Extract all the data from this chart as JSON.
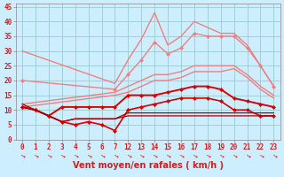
{
  "background_color": "#cceeff",
  "grid_color": "#99cccc",
  "xlabel": "Vent moyen/en rafales ( km/h )",
  "ylim": [
    0,
    46
  ],
  "yticks": [
    0,
    5,
    10,
    15,
    20,
    25,
    30,
    35,
    40,
    45
  ],
  "x_positions": [
    0,
    1,
    2,
    3,
    4,
    5,
    6,
    7,
    8,
    9,
    10,
    11,
    12,
    13,
    14,
    15,
    16,
    17,
    18,
    19
  ],
  "x_labels": [
    "0",
    "1",
    "2",
    "3",
    "4",
    "5",
    "6",
    "7",
    "12",
    "13",
    "14",
    "15",
    "16",
    "17",
    "18",
    "19",
    "20",
    "21",
    "22",
    "23"
  ],
  "series": [
    {
      "name": "upper_light1",
      "color": "#f08080",
      "linewidth": 1.0,
      "marker": null,
      "data_xi": [
        0,
        7,
        8,
        9,
        10,
        11,
        12,
        13,
        14,
        15,
        16,
        17,
        18,
        19
      ],
      "data_y": [
        30,
        19,
        27,
        34,
        43,
        32,
        35,
        40,
        38,
        36,
        36,
        32,
        25,
        18
      ]
    },
    {
      "name": "upper_light2",
      "color": "#f08080",
      "linewidth": 1.0,
      "marker": "D",
      "markersize": 2.0,
      "data_xi": [
        0,
        7,
        8,
        9,
        10,
        11,
        12,
        13,
        14,
        15,
        16,
        17,
        18,
        19
      ],
      "data_y": [
        20,
        17,
        22,
        27,
        33,
        29,
        31,
        36,
        35,
        35,
        35,
        31,
        25,
        18
      ]
    },
    {
      "name": "mid_light1",
      "color": "#f08080",
      "linewidth": 1.0,
      "marker": null,
      "data_xi": [
        0,
        7,
        8,
        9,
        10,
        11,
        12,
        13,
        14,
        15,
        16,
        17,
        18,
        19
      ],
      "data_y": [
        12,
        16,
        18,
        20,
        22,
        22,
        23,
        25,
        25,
        25,
        25,
        22,
        18,
        15
      ]
    },
    {
      "name": "mid_light2",
      "color": "#f08080",
      "linewidth": 1.0,
      "marker": null,
      "data_xi": [
        0,
        7,
        8,
        9,
        10,
        11,
        12,
        13,
        14,
        15,
        16,
        17,
        18,
        19
      ],
      "data_y": [
        11,
        15,
        16,
        18,
        20,
        20,
        21,
        23,
        23,
        23,
        24,
        21,
        17,
        14
      ]
    },
    {
      "name": "red_main",
      "color": "#dd0000",
      "linewidth": 1.4,
      "marker": "D",
      "markersize": 2.0,
      "data_xi": [
        0,
        1,
        2,
        3,
        4,
        5,
        6,
        7,
        8,
        9,
        10,
        11,
        12,
        13,
        14,
        15,
        16,
        17,
        18,
        19
      ],
      "data_y": [
        11,
        10,
        8,
        11,
        11,
        11,
        11,
        11,
        15,
        15,
        15,
        16,
        17,
        18,
        18,
        17,
        14,
        13,
        12,
        11
      ]
    },
    {
      "name": "red_lower",
      "color": "#dd0000",
      "linewidth": 1.2,
      "marker": "D",
      "markersize": 2.0,
      "data_xi": [
        0,
        1,
        2,
        3,
        4,
        5,
        6,
        7,
        8,
        9,
        10,
        11,
        12,
        13,
        14,
        15,
        16,
        17,
        18,
        19
      ],
      "data_y": [
        11,
        10,
        8,
        6,
        5,
        6,
        5,
        3,
        10,
        11,
        12,
        13,
        14,
        14,
        14,
        13,
        10,
        10,
        8,
        8
      ]
    },
    {
      "name": "dark_bottom1",
      "color": "#aa0000",
      "linewidth": 0.9,
      "marker": null,
      "data_xi": [
        0,
        1,
        2,
        3,
        4,
        5,
        6,
        7,
        8,
        9,
        10,
        11,
        12,
        13,
        14,
        15,
        16,
        17,
        18,
        19
      ],
      "data_y": [
        11,
        10,
        8,
        6,
        7,
        7,
        7,
        7,
        8,
        8,
        8,
        8,
        8,
        8,
        8,
        8,
        8,
        8,
        8,
        8
      ]
    },
    {
      "name": "dark_bottom2",
      "color": "#aa0000",
      "linewidth": 0.9,
      "marker": null,
      "data_xi": [
        0,
        1,
        2,
        3,
        4,
        5,
        6,
        7,
        8,
        9,
        10,
        11,
        12,
        13,
        14,
        15,
        16,
        17,
        18,
        19
      ],
      "data_y": [
        12,
        10,
        8,
        6,
        7,
        7,
        7,
        7,
        9,
        9,
        9,
        9,
        9,
        9,
        9,
        9,
        9,
        9,
        9,
        9
      ]
    }
  ],
  "tick_color": "#cc2222",
  "tick_fontsize": 5.5,
  "xlabel_fontsize": 7.0,
  "arrow_color": "#cc3333"
}
